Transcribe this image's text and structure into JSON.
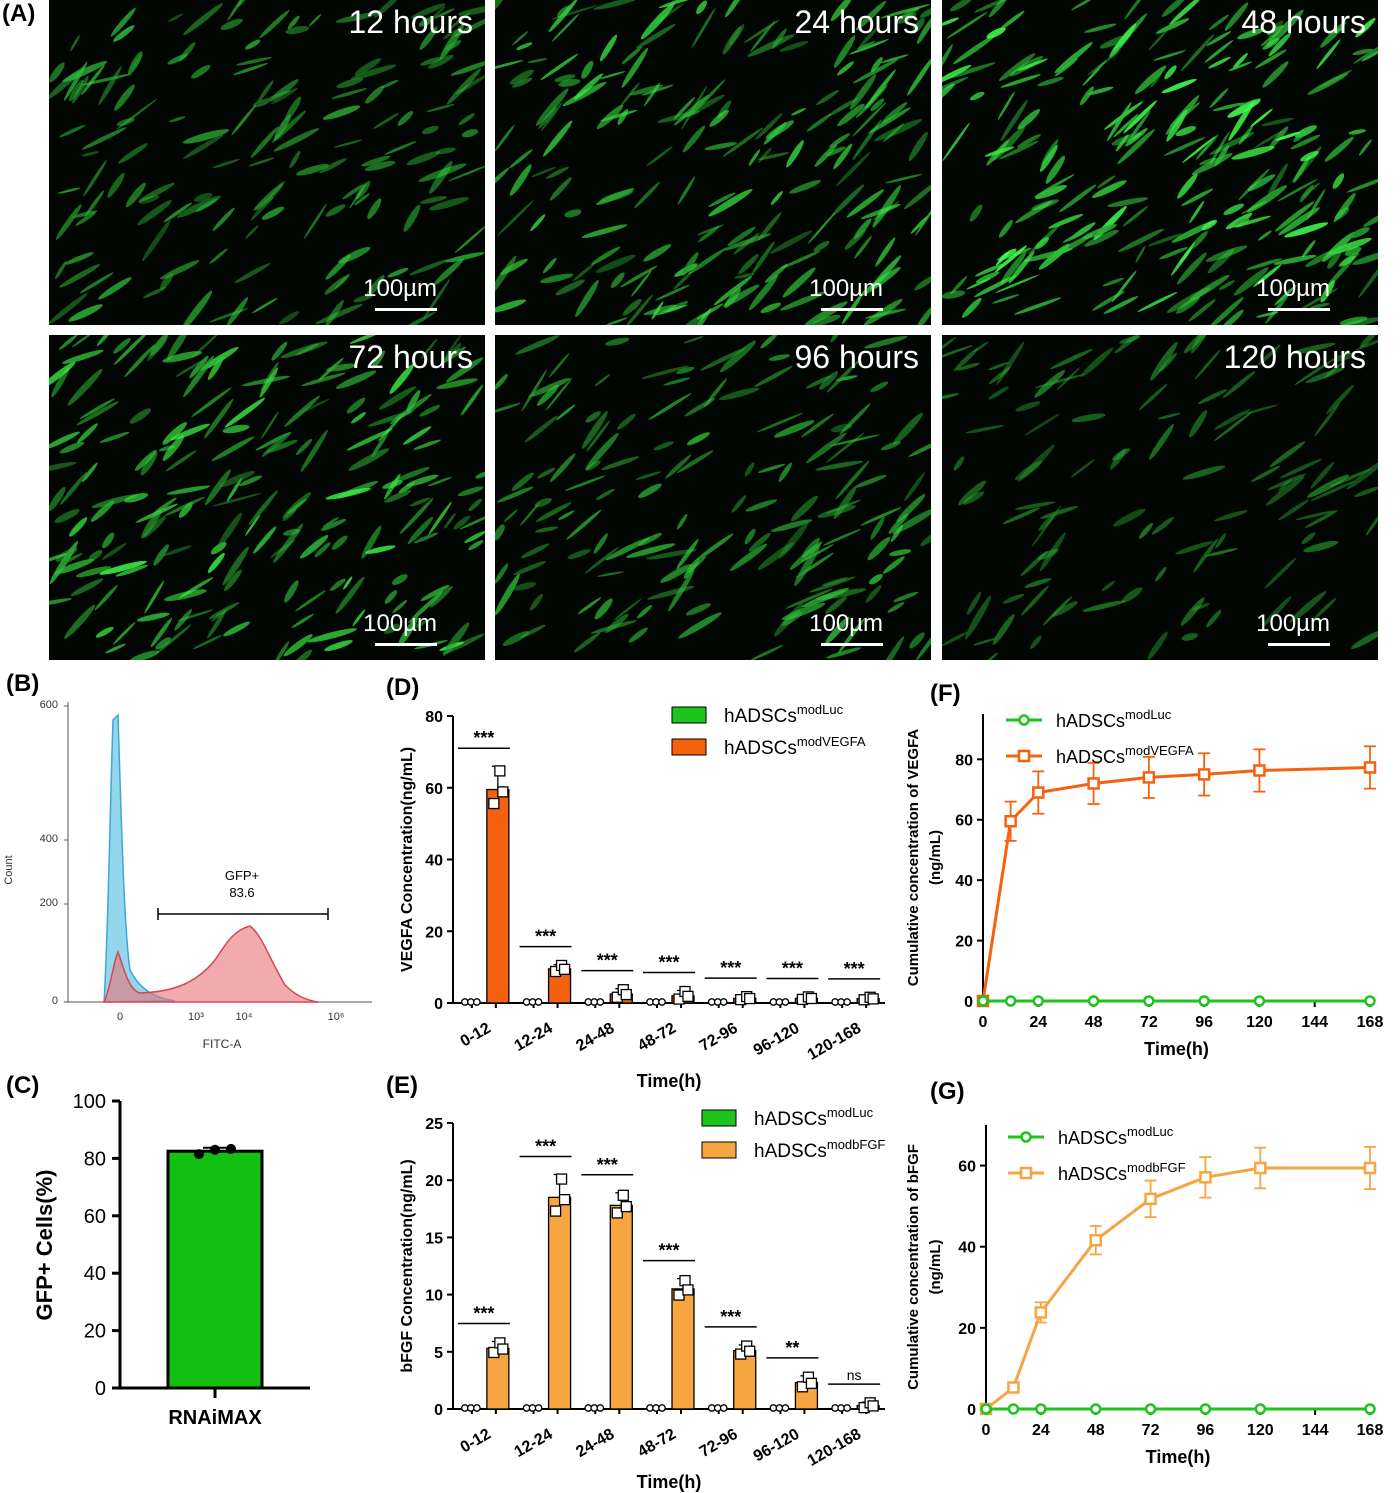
{
  "panels": {
    "a": "(A)",
    "b": "(B)",
    "c": "(C)",
    "d": "(D)",
    "e": "(E)",
    "f": "(F)",
    "g": "(G)"
  },
  "microscopy": [
    {
      "time": "12 hours",
      "scale": "100µm",
      "intensity": 0.55
    },
    {
      "time": "24 hours",
      "scale": "100µm",
      "intensity": 0.75
    },
    {
      "time": "48 hours",
      "scale": "100µm",
      "intensity": 0.95
    },
    {
      "time": "72 hours",
      "scale": "100µm",
      "intensity": 0.8
    },
    {
      "time": "96 hours",
      "scale": "100µm",
      "intensity": 0.55
    },
    {
      "time": "120 hours",
      "scale": "100µm",
      "intensity": 0.3
    }
  ],
  "chart_data": [
    {
      "id": "B",
      "type": "area",
      "ylabel": "Count",
      "xlabel": "FITC-A",
      "yticks": [
        "0",
        "200",
        "400",
        "600"
      ],
      "xticks": [
        "0",
        "10³",
        "10⁴",
        "10⁶"
      ],
      "gate_label": "GFP+",
      "gate_value": "83.6",
      "colors": {
        "control": "#5bc0e0",
        "sample": "#e8737a"
      }
    },
    {
      "id": "C",
      "type": "bar",
      "ylabel": "GFP+ Cells(%)",
      "categories": [
        "RNAiMAX"
      ],
      "values": [
        82.5
      ],
      "points": [
        81.5,
        83.0,
        83.3
      ],
      "error": 1.2,
      "ylim": [
        0,
        100
      ],
      "yticks": [
        "0",
        "20",
        "40",
        "60",
        "80",
        "100"
      ],
      "color": "#11c011"
    },
    {
      "id": "D",
      "type": "bar",
      "xlabel": "Time(h)",
      "ylabel": "VEGFA Concentration(ng/mL)",
      "ylim": [
        0,
        80
      ],
      "yticks": [
        "0",
        "20",
        "40",
        "60",
        "80"
      ],
      "categories": [
        "0-12",
        "12-24",
        "24-48",
        "48-72",
        "72-96",
        "96-120",
        "120-168"
      ],
      "series": [
        {
          "name": "hADSCs",
          "sup": "modLuc",
          "color": "#1ec41e",
          "values": [
            0,
            0,
            0,
            0,
            0,
            0,
            0
          ]
        },
        {
          "name": "hADSCs",
          "sup": "modVEGFA",
          "color": "#f5620f",
          "values": [
            59.5,
            9.5,
            2.5,
            2.0,
            1.3,
            1.3,
            1.2
          ],
          "errors": [
            6.5,
            1.2,
            1.5,
            1.5,
            0.6,
            0.5,
            0.5
          ]
        }
      ],
      "sig": [
        "***",
        "***",
        "***",
        "***",
        "***",
        "***",
        "***"
      ]
    },
    {
      "id": "E",
      "type": "bar",
      "xlabel": "Time(h)",
      "ylabel": "bFGF Concentration(ng/mL)",
      "ylim": [
        0,
        25
      ],
      "yticks": [
        "0",
        "5",
        "10",
        "15",
        "20",
        "25"
      ],
      "categories": [
        "0-12",
        "12-24",
        "24-48",
        "48-72",
        "72-96",
        "96-120",
        "120-168"
      ],
      "series": [
        {
          "name": "hADSCs",
          "sup": "modLuc",
          "color": "#1ec41e",
          "values": [
            0,
            0,
            0,
            0,
            0,
            0,
            0
          ]
        },
        {
          "name": "hADSCs",
          "sup": "modbFGF",
          "color": "#f7a540",
          "values": [
            5.3,
            18.5,
            17.8,
            10.5,
            5.1,
            2.3,
            0.3
          ],
          "errors": [
            0.6,
            2.0,
            1.1,
            0.9,
            0.5,
            0.6,
            0.3
          ]
        }
      ],
      "sig": [
        "***",
        "***",
        "***",
        "***",
        "***",
        "**",
        "ns"
      ]
    },
    {
      "id": "F",
      "type": "line",
      "xlabel": "Time(h)",
      "ylabel": [
        "Cumulative concentration of VEGFA",
        "(ng/mL)"
      ],
      "xlim": [
        0,
        168
      ],
      "ylim": [
        0,
        95
      ],
      "xticks": [
        0,
        24,
        48,
        72,
        96,
        120,
        144,
        168
      ],
      "yticks": [
        0,
        20,
        40,
        60,
        80
      ],
      "series": [
        {
          "name": "hADSCs",
          "sup": "modLuc",
          "color": "#1ec41e",
          "marker": "circle",
          "x": [
            0,
            12,
            24,
            48,
            72,
            96,
            120,
            168
          ],
          "y": [
            0,
            0,
            0,
            0,
            0,
            0,
            0,
            0
          ]
        },
        {
          "name": "hADSCs",
          "sup": "modVEGFA",
          "color": "#f5620f",
          "marker": "square",
          "x": [
            0,
            12,
            24,
            48,
            72,
            96,
            120,
            168
          ],
          "y": [
            0,
            59.5,
            69,
            72,
            74,
            75,
            76.3,
            77.3
          ],
          "errors": [
            0,
            6.5,
            7,
            6.8,
            6.8,
            7,
            7,
            7
          ]
        }
      ]
    },
    {
      "id": "G",
      "type": "line",
      "xlabel": "Time(h)",
      "ylabel": [
        "Cumulative concentration of bFGF",
        "(ng/mL)"
      ],
      "xlim": [
        0,
        168
      ],
      "ylim": [
        0,
        70
      ],
      "xticks": [
        0,
        24,
        48,
        72,
        96,
        120,
        144,
        168
      ],
      "yticks": [
        0,
        20,
        40,
        60
      ],
      "series": [
        {
          "name": "hADSCs",
          "sup": "modLuc",
          "color": "#1ec41e",
          "marker": "circle",
          "x": [
            0,
            12,
            24,
            48,
            72,
            96,
            120,
            168
          ],
          "y": [
            0,
            0,
            0,
            0,
            0,
            0,
            0,
            0
          ]
        },
        {
          "name": "hADSCs",
          "sup": "modbFGF",
          "color": "#f7a540",
          "marker": "square",
          "x": [
            0,
            12,
            24,
            48,
            72,
            96,
            120,
            168
          ],
          "y": [
            0,
            5.3,
            23.8,
            41.6,
            51.8,
            57.1,
            59.4,
            59.4
          ],
          "errors": [
            0,
            0.6,
            2.5,
            3.5,
            4.5,
            5,
            5,
            5.2
          ]
        }
      ]
    }
  ]
}
